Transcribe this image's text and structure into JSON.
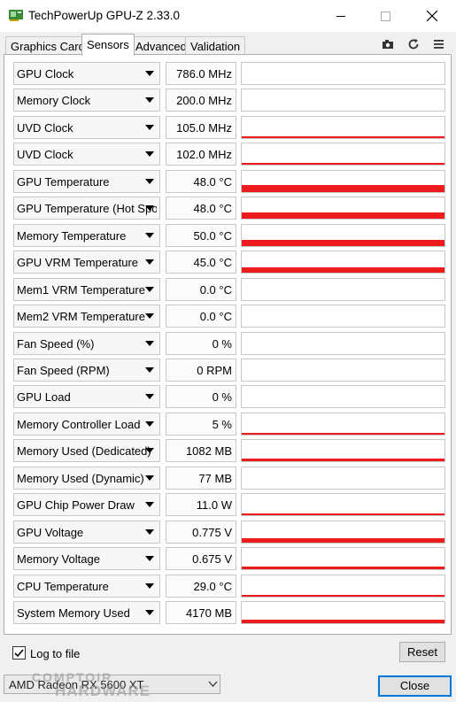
{
  "window": {
    "title": "TechPowerUp GPU-Z 2.33.0"
  },
  "tabs": [
    {
      "label": "Graphics Card"
    },
    {
      "label": "Sensors",
      "active": true
    },
    {
      "label": "Advanced"
    },
    {
      "label": "Validation"
    }
  ],
  "toolbar_icons": [
    "camera-icon",
    "refresh-icon",
    "menu-icon"
  ],
  "sensors": [
    {
      "name": "GPU Clock",
      "value": "786.0 MHz",
      "graph_level": 0
    },
    {
      "name": "Memory Clock",
      "value": "200.0 MHz",
      "graph_level": 0
    },
    {
      "name": "UVD Clock",
      "value": "105.0 MHz",
      "graph_level": 0.08
    },
    {
      "name": "UVD Clock",
      "value": "102.0 MHz",
      "graph_level": 0.08
    },
    {
      "name": "GPU Temperature",
      "value": "48.0 °C",
      "graph_level": 0.35
    },
    {
      "name": "GPU Temperature (Hot Spot)",
      "value": "48.0 °C",
      "graph_level": 0.3
    },
    {
      "name": "Memory Temperature",
      "value": "50.0 °C",
      "graph_level": 0.3
    },
    {
      "name": "GPU VRM Temperature",
      "value": "45.0 °C",
      "graph_level": 0.25
    },
    {
      "name": "Mem1 VRM Temperature",
      "value": "0.0 °C",
      "graph_level": 0
    },
    {
      "name": "Mem2 VRM Temperature",
      "value": "0.0 °C",
      "graph_level": 0
    },
    {
      "name": "Fan Speed (%)",
      "value": "0 %",
      "graph_level": 0
    },
    {
      "name": "Fan Speed (RPM)",
      "value": "0 RPM",
      "graph_level": 0
    },
    {
      "name": "GPU Load",
      "value": "0 %",
      "graph_level": 0
    },
    {
      "name": "Memory Controller Load",
      "value": "5 %",
      "graph_level": 0.05
    },
    {
      "name": "Memory Used (Dedicated)",
      "value": "1082 MB",
      "graph_level": 0.12
    },
    {
      "name": "Memory Used (Dynamic)",
      "value": "77 MB",
      "graph_level": 0
    },
    {
      "name": "GPU Chip Power Draw",
      "value": "11.0 W",
      "graph_level": 0.05
    },
    {
      "name": "GPU Voltage",
      "value": "0.775 V",
      "graph_level": 0.2
    },
    {
      "name": "Memory Voltage",
      "value": "0.675 V",
      "graph_level": 0.12
    },
    {
      "name": "CPU Temperature",
      "value": "29.0 °C",
      "graph_level": 0.1
    },
    {
      "name": "System Memory Used",
      "value": "4170 MB",
      "graph_level": 0.18
    }
  ],
  "footer": {
    "log_to_file_label": "Log to file",
    "log_to_file_checked": true,
    "reset_label": "Reset",
    "device_selected": "AMD Radeon RX 5600 XT",
    "close_label": "Close"
  },
  "watermark": {
    "line1": "COMPTOIR",
    "line2": "HARDWARE"
  },
  "colors": {
    "graph": "#ed1c1c",
    "focus": "#0078d7"
  }
}
